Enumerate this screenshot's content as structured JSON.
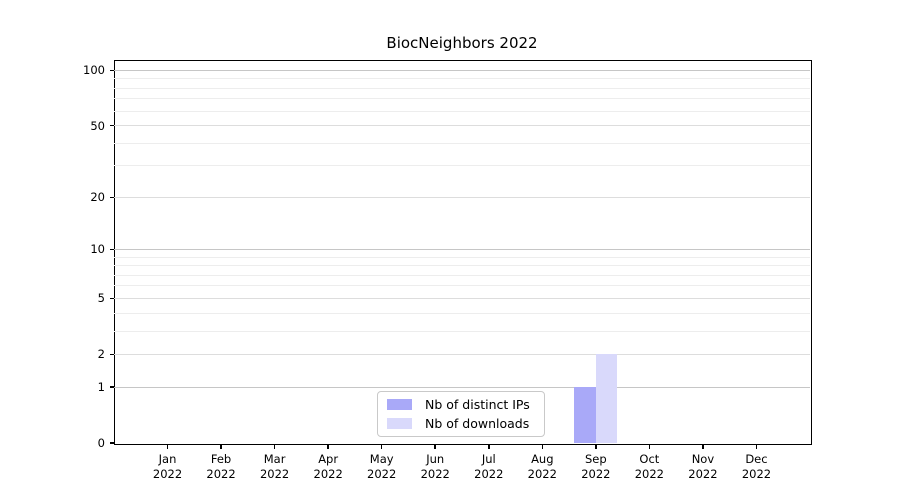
{
  "chart_data": {
    "type": "bar",
    "title": "BiocNeighbors 2022",
    "categories": [
      {
        "month": "Jan",
        "year": "2022"
      },
      {
        "month": "Feb",
        "year": "2022"
      },
      {
        "month": "Mar",
        "year": "2022"
      },
      {
        "month": "Apr",
        "year": "2022"
      },
      {
        "month": "May",
        "year": "2022"
      },
      {
        "month": "Jun",
        "year": "2022"
      },
      {
        "month": "Jul",
        "year": "2022"
      },
      {
        "month": "Aug",
        "year": "2022"
      },
      {
        "month": "Sep",
        "year": "2022"
      },
      {
        "month": "Oct",
        "year": "2022"
      },
      {
        "month": "Nov",
        "year": "2022"
      },
      {
        "month": "Dec",
        "year": "2022"
      }
    ],
    "series": [
      {
        "name": "Nb of distinct IPs",
        "color": "#a9a9f8",
        "values": [
          0,
          0,
          0,
          0,
          0,
          0,
          0,
          0,
          1,
          0,
          0,
          0
        ]
      },
      {
        "name": "Nb of downloads",
        "color": "#d9d9fb",
        "values": [
          0,
          0,
          0,
          0,
          0,
          0,
          0,
          0,
          2,
          0,
          0,
          0
        ]
      }
    ],
    "y_axis": {
      "scale": "log1p",
      "labeled_ticks": [
        0,
        1,
        2,
        5,
        10,
        20,
        50,
        100
      ],
      "decade_gridlines": [
        1,
        10,
        100
      ],
      "mid_gridlines": [
        2,
        5,
        20,
        50
      ],
      "minor_gridlines": [
        3,
        4,
        6,
        7,
        8,
        9,
        30,
        40,
        60,
        70,
        80,
        90
      ],
      "ylim": [
        0,
        114
      ]
    },
    "x_axis": {
      "xlim_units": [
        -1,
        12
      ]
    },
    "legend_position": "lower center",
    "grid": true
  },
  "colors": {
    "bar_distinct_ips": "#a9a9f8",
    "bar_downloads": "#d9d9fb",
    "grid_decade": "#c6c6c6",
    "grid_mid": "#dddddd",
    "grid_minor": "#ededed",
    "spine": "#000000",
    "legend_border": "#c9c9c9",
    "text": "#000000",
    "background": "#ffffff"
  }
}
